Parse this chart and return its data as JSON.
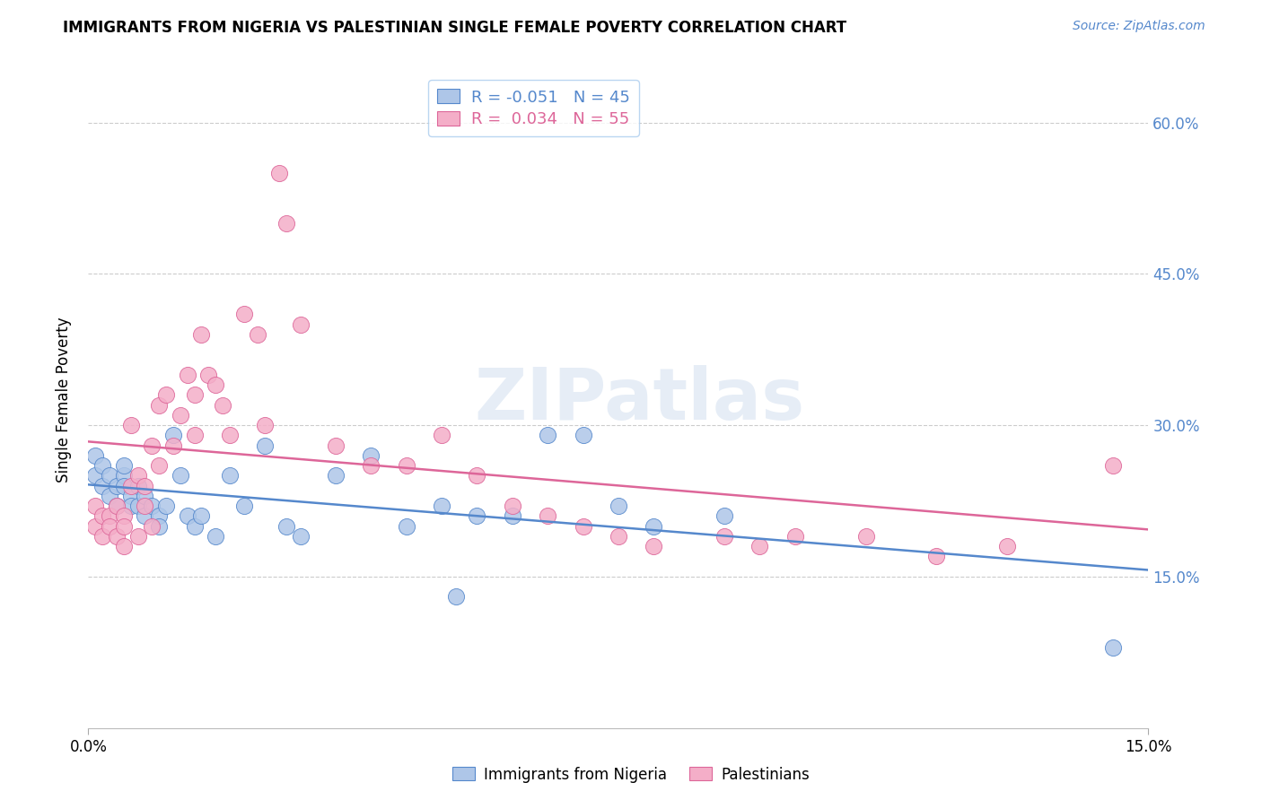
{
  "title": "IMMIGRANTS FROM NIGERIA VS PALESTINIAN SINGLE FEMALE POVERTY CORRELATION CHART",
  "source": "Source: ZipAtlas.com",
  "ylabel": "Single Female Poverty",
  "xlim": [
    0.0,
    0.15
  ],
  "ylim": [
    0.0,
    0.65
  ],
  "yticks": [
    0.15,
    0.3,
    0.45,
    0.6
  ],
  "ytick_labels": [
    "15.0%",
    "30.0%",
    "45.0%",
    "60.0%"
  ],
  "xtick_vals": [
    0.0,
    0.15
  ],
  "xtick_labels": [
    "0.0%",
    "15.0%"
  ],
  "watermark": "ZIPatlas",
  "blue_color": "#aec6e8",
  "pink_color": "#f4aec8",
  "blue_line_color": "#5588cc",
  "pink_line_color": "#dd6699",
  "right_axis_color": "#5588cc",
  "nigeria_x": [
    0.001,
    0.001,
    0.002,
    0.002,
    0.003,
    0.003,
    0.004,
    0.004,
    0.005,
    0.005,
    0.005,
    0.006,
    0.006,
    0.007,
    0.007,
    0.008,
    0.008,
    0.009,
    0.01,
    0.01,
    0.011,
    0.012,
    0.013,
    0.014,
    0.015,
    0.016,
    0.018,
    0.02,
    0.022,
    0.025,
    0.028,
    0.03,
    0.035,
    0.04,
    0.045,
    0.05,
    0.055,
    0.06,
    0.065,
    0.07,
    0.075,
    0.08,
    0.09,
    0.052,
    0.145
  ],
  "nigeria_y": [
    0.27,
    0.25,
    0.24,
    0.26,
    0.25,
    0.23,
    0.24,
    0.22,
    0.25,
    0.26,
    0.24,
    0.23,
    0.22,
    0.24,
    0.22,
    0.23,
    0.21,
    0.22,
    0.21,
    0.2,
    0.22,
    0.29,
    0.25,
    0.21,
    0.2,
    0.21,
    0.19,
    0.25,
    0.22,
    0.28,
    0.2,
    0.19,
    0.25,
    0.27,
    0.2,
    0.22,
    0.21,
    0.21,
    0.29,
    0.29,
    0.22,
    0.2,
    0.21,
    0.13,
    0.08
  ],
  "palestinians_x": [
    0.001,
    0.001,
    0.002,
    0.002,
    0.003,
    0.003,
    0.004,
    0.004,
    0.005,
    0.005,
    0.005,
    0.006,
    0.006,
    0.007,
    0.007,
    0.008,
    0.008,
    0.009,
    0.009,
    0.01,
    0.01,
    0.011,
    0.012,
    0.013,
    0.014,
    0.015,
    0.015,
    0.016,
    0.017,
    0.018,
    0.019,
    0.02,
    0.022,
    0.024,
    0.025,
    0.027,
    0.028,
    0.03,
    0.035,
    0.04,
    0.045,
    0.05,
    0.055,
    0.06,
    0.065,
    0.07,
    0.075,
    0.08,
    0.09,
    0.095,
    0.1,
    0.11,
    0.12,
    0.13,
    0.145
  ],
  "palestinians_y": [
    0.22,
    0.2,
    0.21,
    0.19,
    0.21,
    0.2,
    0.22,
    0.19,
    0.21,
    0.2,
    0.18,
    0.3,
    0.24,
    0.25,
    0.19,
    0.24,
    0.22,
    0.28,
    0.2,
    0.32,
    0.26,
    0.33,
    0.28,
    0.31,
    0.35,
    0.33,
    0.29,
    0.39,
    0.35,
    0.34,
    0.32,
    0.29,
    0.41,
    0.39,
    0.3,
    0.55,
    0.5,
    0.4,
    0.28,
    0.26,
    0.26,
    0.29,
    0.25,
    0.22,
    0.21,
    0.2,
    0.19,
    0.18,
    0.19,
    0.18,
    0.19,
    0.19,
    0.17,
    0.18,
    0.26
  ]
}
